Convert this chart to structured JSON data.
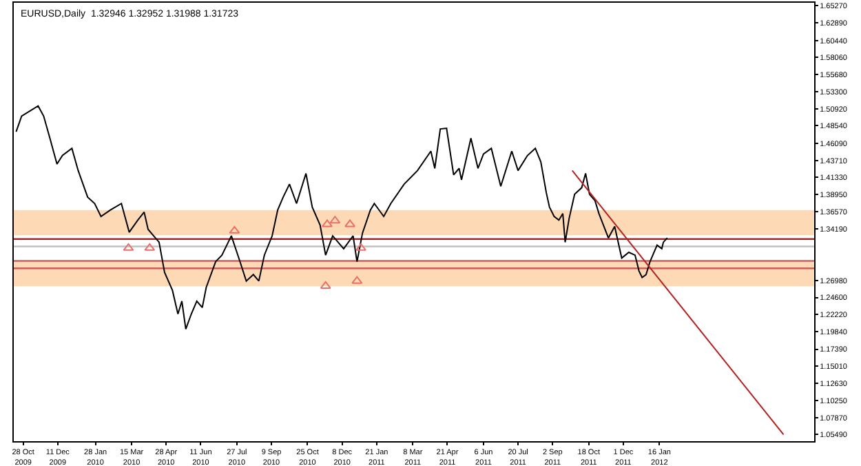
{
  "chart_data": {
    "type": "line",
    "title": "EURUSD,Daily  1.32946 1.32952 1.31988 1.31723",
    "xlim": [
      "2009-10-16",
      "2012-07-31"
    ],
    "xticks": [
      {
        "value": "2009-10-28",
        "label": "28 Oct 2009"
      },
      {
        "value": "2009-12-11",
        "label": "11 Dec 2009"
      },
      {
        "value": "2010-01-28",
        "label": "28 Jan 2010"
      },
      {
        "value": "2010-03-15",
        "label": "15 Mar 2010"
      },
      {
        "value": "2010-04-28",
        "label": "28 Apr 2010"
      },
      {
        "value": "2010-06-11",
        "label": "11 Jun 2010"
      },
      {
        "value": "2010-07-27",
        "label": "27 Jul 2010"
      },
      {
        "value": "2010-09-09",
        "label": "9 Sep 2010"
      },
      {
        "value": "2010-10-25",
        "label": "25 Oct 2010"
      },
      {
        "value": "2010-12-08",
        "label": "8 Dec 2010"
      },
      {
        "value": "2011-01-21",
        "label": "21 Jan 2011"
      },
      {
        "value": "2011-03-08",
        "label": "8 Mar 2011"
      },
      {
        "value": "2011-04-21",
        "label": "21 Apr 2011"
      },
      {
        "value": "2011-06-06",
        "label": "6 Jun 2011"
      },
      {
        "value": "2011-07-20",
        "label": "20 Jul 2011"
      },
      {
        "value": "2011-09-02",
        "label": "2 Sep 2011"
      },
      {
        "value": "2011-10-18",
        "label": "18 Oct 2011"
      },
      {
        "value": "2011-12-01",
        "label": "1 Dec 2011"
      },
      {
        "value": "2012-01-16",
        "label": "16 Jan 2012"
      }
    ],
    "ylim": [
      1.0457,
      1.6569
    ],
    "yticks": [
      {
        "value": 1.0549,
        "label": "1.05490"
      },
      {
        "value": 1.0787,
        "label": "1.07870"
      },
      {
        "value": 1.1025,
        "label": "1.10250"
      },
      {
        "value": 1.1263,
        "label": "1.12630"
      },
      {
        "value": 1.1501,
        "label": "1.15010"
      },
      {
        "value": 1.1739,
        "label": "1.17390"
      },
      {
        "value": 1.1984,
        "label": "1.19840"
      },
      {
        "value": 1.2222,
        "label": "1.22220"
      },
      {
        "value": 1.246,
        "label": "1.24600"
      },
      {
        "value": 1.2698,
        "label": "1.26980"
      },
      {
        "value": 1.3419,
        "label": "1.34190"
      },
      {
        "value": 1.3657,
        "label": "1.36570"
      },
      {
        "value": 1.3895,
        "label": "1.38950"
      },
      {
        "value": 1.4133,
        "label": "1.41330"
      },
      {
        "value": 1.4371,
        "label": "1.43710"
      },
      {
        "value": 1.4609,
        "label": "1.46090"
      },
      {
        "value": 1.4854,
        "label": "1.48540"
      },
      {
        "value": 1.5092,
        "label": "1.50920"
      },
      {
        "value": 1.533,
        "label": "1.53300"
      },
      {
        "value": 1.5568,
        "label": "1.55680"
      },
      {
        "value": 1.5806,
        "label": "1.58060"
      },
      {
        "value": 1.6044,
        "label": "1.60440"
      },
      {
        "value": 1.6289,
        "label": "1.62890"
      },
      {
        "value": 1.6527,
        "label": "1.65270"
      }
    ],
    "grid": false,
    "line_style": "solid",
    "marker": "none",
    "series": [
      {
        "color": "#000000",
        "x": [
          "2009-10-19",
          "2009-10-26",
          "2009-11-16",
          "2009-11-23",
          "2009-12-01",
          "2009-12-10",
          "2009-12-17",
          "2009-12-29",
          "2010-01-06",
          "2010-01-18",
          "2010-01-27",
          "2010-02-04",
          "2010-02-16",
          "2010-03-02",
          "2010-03-12",
          "2010-03-23",
          "2010-03-31",
          "2010-04-05",
          "2010-04-19",
          "2010-04-26",
          "2010-05-06",
          "2010-05-13",
          "2010-05-18",
          "2010-05-23",
          "2010-05-30",
          "2010-06-06",
          "2010-06-13",
          "2010-06-18",
          "2010-06-30",
          "2010-07-08",
          "2010-07-20",
          "2010-07-31",
          "2010-08-08",
          "2010-08-17",
          "2010-08-24",
          "2010-08-31",
          "2010-09-10",
          "2010-09-17",
          "2010-09-24",
          "2010-10-02",
          "2010-10-11",
          "2010-10-23",
          "2010-10-31",
          "2010-11-10",
          "2010-11-17",
          "2010-11-26",
          "2010-12-10",
          "2010-12-22",
          "2010-12-27",
          "2011-01-03",
          "2011-01-13",
          "2011-01-18",
          "2011-01-30",
          "2011-02-08",
          "2011-02-25",
          "2011-03-14",
          "2011-03-31",
          "2011-04-05",
          "2011-04-12",
          "2011-04-20",
          "2011-04-29",
          "2011-05-06",
          "2011-05-09",
          "2011-05-21",
          "2011-05-30",
          "2011-06-06",
          "2011-06-16",
          "2011-06-28",
          "2011-07-12",
          "2011-07-20",
          "2011-08-01",
          "2011-08-11",
          "2011-08-18",
          "2011-08-25",
          "2011-08-29",
          "2011-09-04",
          "2011-09-10",
          "2011-09-15",
          "2011-09-18",
          "2011-09-23",
          "2011-09-30",
          "2011-10-09",
          "2011-10-14",
          "2011-10-19",
          "2011-10-26",
          "2011-10-31",
          "2011-11-12",
          "2011-11-20",
          "2011-11-29",
          "2011-12-08",
          "2011-12-16",
          "2011-12-21",
          "2011-12-25",
          "2011-12-30",
          "2012-01-04",
          "2012-01-13",
          "2012-01-19",
          "2012-01-21",
          "2012-01-26"
        ],
        "values": [
          1.477,
          1.499,
          1.513,
          1.499,
          1.468,
          1.432,
          1.444,
          1.454,
          1.423,
          1.386,
          1.377,
          1.359,
          1.368,
          1.377,
          1.337,
          1.354,
          1.365,
          1.341,
          1.323,
          1.281,
          1.256,
          1.223,
          1.241,
          1.202,
          1.223,
          1.241,
          1.232,
          1.26,
          1.296,
          1.305,
          1.332,
          1.296,
          1.269,
          1.278,
          1.269,
          1.305,
          1.332,
          1.368,
          1.386,
          1.404,
          1.377,
          1.419,
          1.372,
          1.347,
          1.305,
          1.332,
          1.314,
          1.332,
          1.296,
          1.336,
          1.368,
          1.377,
          1.359,
          1.377,
          1.404,
          1.423,
          1.45,
          1.426,
          1.481,
          1.482,
          1.417,
          1.426,
          1.41,
          1.468,
          1.426,
          1.446,
          1.454,
          1.401,
          1.45,
          1.423,
          1.444,
          1.454,
          1.435,
          1.392,
          1.372,
          1.359,
          1.354,
          1.363,
          1.323,
          1.356,
          1.39,
          1.399,
          1.419,
          1.39,
          1.381,
          1.363,
          1.329,
          1.345,
          1.301,
          1.309,
          1.305,
          1.283,
          1.274,
          1.278,
          1.296,
          1.319,
          1.314,
          1.323,
          1.329
        ]
      },
      {
        "type": "line",
        "color": "#b22222",
        "x": [
          "2011-09-27",
          "2012-06-22"
        ],
        "values": [
          1.423,
          1.055
        ]
      },
      {
        "type": "scatter",
        "marker": "triangle",
        "color": "#e8706a",
        "x": [
          "2010-03-11",
          "2010-04-07",
          "2010-07-24",
          "2010-11-17",
          "2010-11-19",
          "2010-11-29",
          "2010-12-18",
          "2010-12-27",
          "2011-01-01"
        ],
        "values": [
          1.315,
          1.315,
          1.339,
          1.262,
          1.348,
          1.353,
          1.348,
          1.269,
          1.315
        ]
      }
    ],
    "bands": [
      {
        "axis": "y",
        "from": 1.333,
        "to": 1.3678,
        "color": "#fdd9b5"
      },
      {
        "axis": "y",
        "from": 1.2617,
        "to": 1.297,
        "color": "#fdd9b5"
      }
    ],
    "ref_lines": [
      {
        "axis": "y",
        "value": 1.3275,
        "color": "#b22222"
      },
      {
        "axis": "y",
        "value": 1.3172,
        "color": "#c0c0c0"
      },
      {
        "axis": "y",
        "value": 1.297,
        "color": "#cd5c5c"
      },
      {
        "axis": "y",
        "value": 1.2867,
        "color": "#cd5c5c"
      }
    ]
  }
}
